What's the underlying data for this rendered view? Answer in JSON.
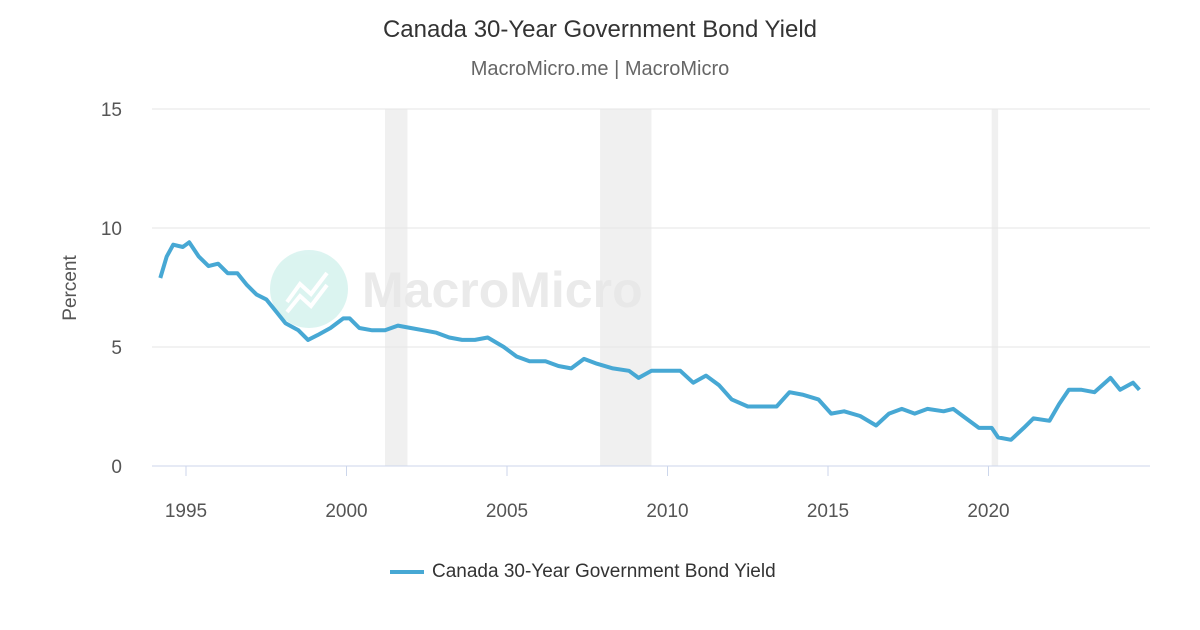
{
  "chart_data": {
    "type": "line",
    "title": "Canada 30-Year Government Bond Yield",
    "subtitle": "MacroMicro.me | MacroMicro",
    "watermark": "MacroMicro",
    "ylabel": "Percent",
    "xlabel": "",
    "ylim": [
      0,
      15
    ],
    "xlim": [
      1993.1,
      2024.9
    ],
    "yticks": [
      "0",
      "5",
      "10",
      "15"
    ],
    "xticks": [
      "1995",
      "2000",
      "2005",
      "2010",
      "2015",
      "2020"
    ],
    "grid": true,
    "legend_position": "bottom",
    "recession_bands": [
      [
        2001.2,
        2001.9
      ],
      [
        2007.9,
        2009.5
      ],
      [
        2020.1,
        2020.3
      ]
    ],
    "colors": {
      "series": "#47a8d4",
      "band": "#f0f0f0",
      "grid": "#e6e6e6"
    },
    "series": [
      {
        "name": "Canada 30-Year Government Bond Yield",
        "x": [
          1994.2,
          1994.4,
          1994.6,
          1994.9,
          1995.1,
          1995.4,
          1995.7,
          1996.0,
          1996.3,
          1996.6,
          1996.9,
          1997.2,
          1997.5,
          1997.8,
          1998.1,
          1998.5,
          1998.8,
          1999.1,
          1999.5,
          1999.9,
          2000.1,
          2000.4,
          2000.8,
          2001.2,
          2001.6,
          2002.0,
          2002.4,
          2002.8,
          2003.2,
          2003.6,
          2004.0,
          2004.4,
          2004.9,
          2005.3,
          2005.7,
          2006.2,
          2006.6,
          2007.0,
          2007.4,
          2007.8,
          2008.3,
          2008.8,
          2009.1,
          2009.5,
          2010.0,
          2010.4,
          2010.8,
          2011.2,
          2011.6,
          2012.0,
          2012.5,
          2013.0,
          2013.4,
          2013.8,
          2014.2,
          2014.7,
          2015.1,
          2015.5,
          2016.0,
          2016.5,
          2016.9,
          2017.3,
          2017.7,
          2018.1,
          2018.6,
          2018.9,
          2019.3,
          2019.7,
          2020.1,
          2020.3,
          2020.7,
          2021.1,
          2021.4,
          2021.9,
          2022.2,
          2022.5,
          2022.9,
          2023.3,
          2023.8,
          2024.1,
          2024.5,
          2024.7
        ],
        "values": [
          7.9,
          8.8,
          9.3,
          9.2,
          9.4,
          8.8,
          8.4,
          8.5,
          8.1,
          8.1,
          7.6,
          7.2,
          7.0,
          6.5,
          6.0,
          5.7,
          5.3,
          5.5,
          5.8,
          6.2,
          6.2,
          5.8,
          5.7,
          5.7,
          5.9,
          5.8,
          5.7,
          5.6,
          5.4,
          5.3,
          5.3,
          5.4,
          5.0,
          4.6,
          4.4,
          4.4,
          4.2,
          4.1,
          4.5,
          4.3,
          4.1,
          4.0,
          3.7,
          4.0,
          4.0,
          4.0,
          3.5,
          3.8,
          3.4,
          2.8,
          2.5,
          2.5,
          2.5,
          3.1,
          3.0,
          2.8,
          2.2,
          2.3,
          2.1,
          1.7,
          2.2,
          2.4,
          2.2,
          2.4,
          2.3,
          2.4,
          2.0,
          1.6,
          1.6,
          1.2,
          1.1,
          1.6,
          2.0,
          1.9,
          2.6,
          3.2,
          3.2,
          3.1,
          3.7,
          3.2,
          3.5,
          3.2
        ]
      }
    ]
  }
}
